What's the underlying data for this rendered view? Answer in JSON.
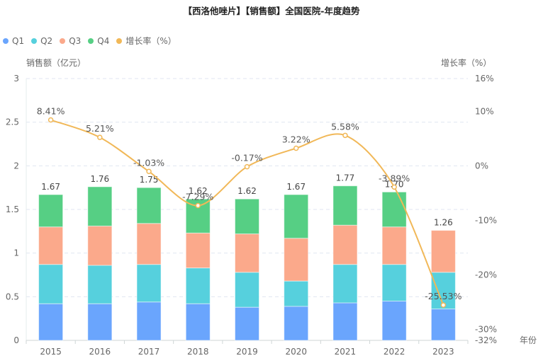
{
  "chart_data": {
    "type": "bar",
    "title": "【西洛他唑片】【销售额】全国医院-年度趋势",
    "xlabel": "年份",
    "ylabel": "销售额（亿元）",
    "y2label": "增长率（%）",
    "ylim": [
      0,
      3
    ],
    "y_ticks": [
      "0",
      "0.5",
      "1",
      "1.5",
      "2",
      "2.5",
      "3"
    ],
    "y2lim": [
      -32,
      16
    ],
    "y2_ticks": [
      "-32%",
      "-30%",
      "-20%",
      "-10%",
      "0%",
      "10%",
      "16%"
    ],
    "y2_tick_values": [
      -32,
      -30,
      -20,
      -10,
      0,
      10,
      16
    ],
    "grid": true,
    "legend_position": "top-left",
    "categories": [
      "2015",
      "2016",
      "2017",
      "2018",
      "2019",
      "2020",
      "2021",
      "2022",
      "2023"
    ],
    "series": [
      {
        "name": "Q1",
        "type": "bar",
        "stack": "total",
        "color": "#6aa5fd",
        "values": [
          0.42,
          0.42,
          0.44,
          0.42,
          0.38,
          0.39,
          0.43,
          0.45,
          0.36
        ]
      },
      {
        "name": "Q2",
        "type": "bar",
        "stack": "total",
        "color": "#56d0dd",
        "values": [
          0.45,
          0.44,
          0.43,
          0.41,
          0.4,
          0.29,
          0.44,
          0.42,
          0.42
        ]
      },
      {
        "name": "Q3",
        "type": "bar",
        "stack": "total",
        "color": "#fba98b",
        "values": [
          0.43,
          0.45,
          0.47,
          0.4,
          0.44,
          0.49,
          0.45,
          0.43,
          0.48
        ]
      },
      {
        "name": "Q4",
        "type": "bar",
        "stack": "total",
        "color": "#56cf84",
        "values": [
          0.37,
          0.45,
          0.41,
          0.39,
          0.4,
          0.5,
          0.45,
          0.4,
          null
        ]
      },
      {
        "name": "增长率（%）",
        "type": "line",
        "axis": "right",
        "color": "#f1b858",
        "values": [
          8.41,
          5.21,
          -1.03,
          -7.29,
          -0.17,
          3.22,
          5.58,
          -3.89,
          -25.53
        ]
      }
    ],
    "totals": [
      1.67,
      1.76,
      1.75,
      1.62,
      1.62,
      1.67,
      1.77,
      1.7,
      1.26
    ],
    "total_labels": [
      "1.67",
      "1.76",
      "1.75",
      "1.62",
      "1.62",
      "1.67",
      "1.77",
      "1.70",
      "1.26"
    ],
    "growth_labels": [
      "8.41%",
      "5.21%",
      "-1.03%",
      "-7.29%",
      "-0.17%",
      "3.22%",
      "5.58%",
      "-3.89%",
      "-25.53%"
    ]
  }
}
